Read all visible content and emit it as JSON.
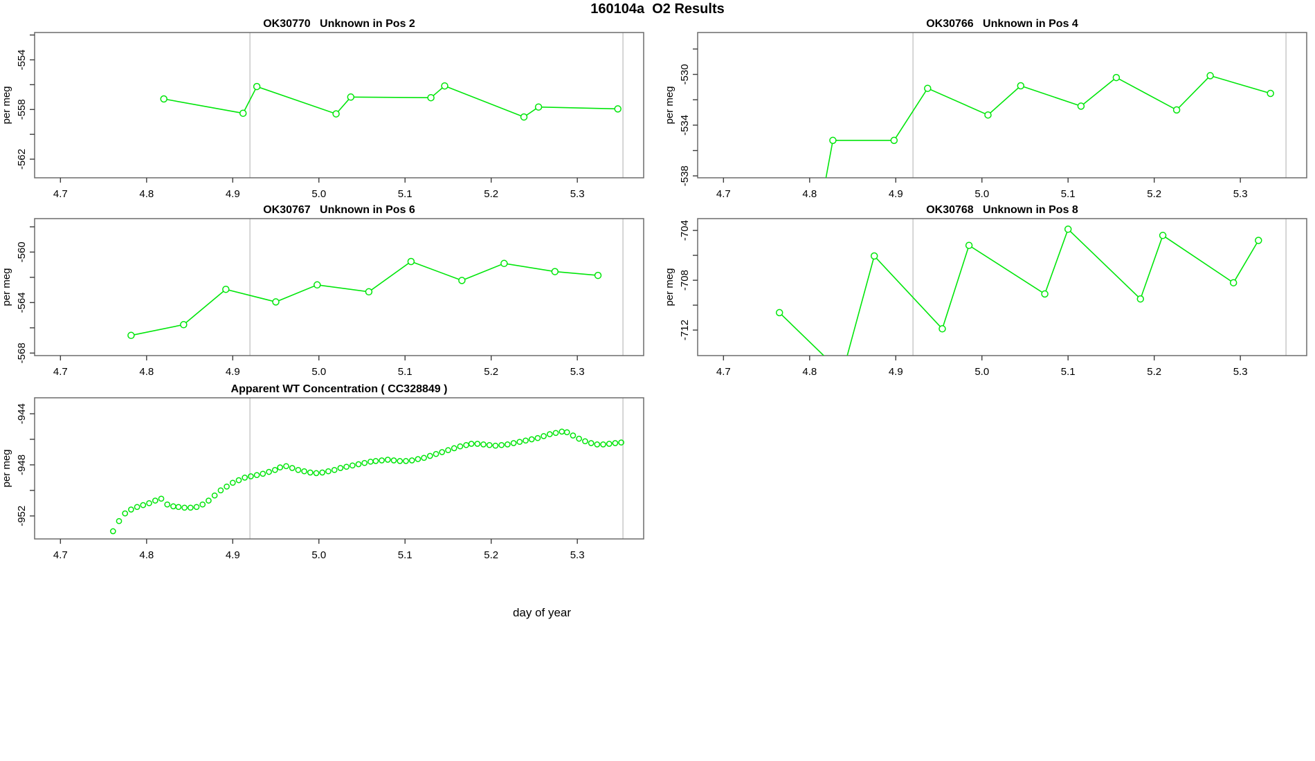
{
  "title": "160104a  O2 Results",
  "xlabel": "day of year",
  "colors": {
    "accent": "#00e60a",
    "frame": "#6b6b6b",
    "tick": "#3c3c3c",
    "guide": "#cccccc"
  },
  "chart_data": [
    {
      "type": "line",
      "title": "OK30770   Unknown in Pos 2",
      "ylabel": "per meg",
      "xlim": [
        4.67,
        5.377
      ],
      "ylim": [
        -563.5,
        -551.8
      ],
      "x_ticks": [
        4.7,
        4.8,
        4.9,
        5.0,
        5.1,
        5.2,
        5.3
      ],
      "x_tick_labels": [
        "4.7",
        "4.8",
        "4.9",
        "5.0",
        "5.1",
        "5.2",
        "5.3"
      ],
      "y_ticks": [
        -552,
        -554,
        -556,
        -558,
        -560,
        -562
      ],
      "y_tick_labels": [
        "",
        "-554",
        "",
        "-558",
        "",
        "-562"
      ],
      "vlines": [
        4.92,
        5.353
      ],
      "marker": "open-circle",
      "points": [
        [
          4.82,
          -557.15
        ],
        [
          4.912,
          -558.3
        ],
        [
          4.928,
          -556.15
        ],
        [
          5.02,
          -558.35
        ],
        [
          5.037,
          -557.0
        ],
        [
          5.13,
          -557.05
        ],
        [
          5.146,
          -556.1
        ],
        [
          5.238,
          -558.6
        ],
        [
          5.255,
          -557.8
        ],
        [
          5.347,
          -557.95
        ]
      ]
    },
    {
      "type": "line",
      "title": "OK30766   Unknown in Pos 4",
      "ylabel": "per meg",
      "xlim": [
        4.67,
        5.377
      ],
      "ylim": [
        -538.15,
        -526.7
      ],
      "x_ticks": [
        4.7,
        4.8,
        4.9,
        5.0,
        5.1,
        5.2,
        5.3
      ],
      "x_tick_labels": [
        "4.7",
        "4.8",
        "4.9",
        "5.0",
        "5.1",
        "5.2",
        "5.3"
      ],
      "y_ticks": [
        -528,
        -530,
        -532,
        -534,
        -536,
        -538
      ],
      "y_tick_labels": [
        "",
        "-530",
        "",
        "-534",
        "",
        "-538"
      ],
      "vlines": [
        4.92,
        5.353
      ],
      "marker": "open-circle",
      "points": [
        [
          4.815,
          -539.6,
          0
        ],
        [
          4.827,
          -535.2
        ],
        [
          4.898,
          -535.2
        ],
        [
          4.937,
          -531.1
        ],
        [
          5.007,
          -533.2
        ],
        [
          5.045,
          -530.9
        ],
        [
          5.115,
          -532.5
        ],
        [
          5.156,
          -530.25
        ],
        [
          5.226,
          -532.8
        ],
        [
          5.265,
          -530.1
        ],
        [
          5.335,
          -531.5
        ]
      ]
    },
    {
      "type": "line",
      "title": "OK30767   Unknown in Pos 6",
      "ylabel": "per meg",
      "xlim": [
        4.67,
        5.377
      ],
      "ylim": [
        -568.2,
        -557.35
      ],
      "x_ticks": [
        4.7,
        4.8,
        4.9,
        5.0,
        5.1,
        5.2,
        5.3
      ],
      "x_tick_labels": [
        "4.7",
        "4.8",
        "4.9",
        "5.0",
        "5.1",
        "5.2",
        "5.3"
      ],
      "y_ticks": [
        -558,
        -560,
        -562,
        -564,
        -566,
        -568
      ],
      "y_tick_labels": [
        "",
        "-560",
        "",
        "-564",
        "",
        "-568"
      ],
      "vlines": [
        4.92,
        5.353
      ],
      "marker": "open-circle",
      "points": [
        [
          4.782,
          -566.6
        ],
        [
          4.843,
          -565.75
        ],
        [
          4.892,
          -562.95
        ],
        [
          4.95,
          -563.95
        ],
        [
          4.998,
          -562.6
        ],
        [
          5.058,
          -563.15
        ],
        [
          5.107,
          -560.75
        ],
        [
          5.166,
          -562.25
        ],
        [
          5.215,
          -560.9
        ],
        [
          5.274,
          -561.55
        ],
        [
          5.324,
          -561.85
        ]
      ]
    },
    {
      "type": "line",
      "title": "OK30768   Unknown in Pos 8",
      "ylabel": "per meg",
      "xlim": [
        4.67,
        5.377
      ],
      "ylim": [
        -714.05,
        -703.05
      ],
      "x_ticks": [
        4.7,
        4.8,
        4.9,
        5.0,
        5.1,
        5.2,
        5.3
      ],
      "x_tick_labels": [
        "4.7",
        "4.8",
        "4.9",
        "5.0",
        "5.1",
        "5.2",
        "5.3"
      ],
      "y_ticks": [
        -704,
        -706,
        -708,
        -710,
        -712
      ],
      "y_tick_labels": [
        "-704",
        "",
        "-708",
        "",
        "-712"
      ],
      "vlines": [
        4.92,
        5.353
      ],
      "marker": "open-circle",
      "points": [
        [
          4.765,
          -710.6
        ],
        [
          4.838,
          -715.5,
          0
        ],
        [
          4.875,
          -706.05
        ],
        [
          4.954,
          -711.9
        ],
        [
          4.985,
          -705.2
        ],
        [
          5.073,
          -709.1
        ],
        [
          5.1,
          -703.9
        ],
        [
          5.184,
          -709.5
        ],
        [
          5.21,
          -704.4
        ],
        [
          5.292,
          -708.2
        ],
        [
          5.321,
          -704.8
        ]
      ]
    },
    {
      "type": "scatter",
      "title": "Apparent WT Concentration ( CC328849 )",
      "ylabel": "per meg",
      "marker_only": true,
      "xlim": [
        4.67,
        5.377
      ],
      "ylim": [
        -953.8,
        -942.75
      ],
      "x_ticks": [
        4.7,
        4.8,
        4.9,
        5.0,
        5.1,
        5.2,
        5.3
      ],
      "x_tick_labels": [
        "4.7",
        "4.8",
        "4.9",
        "5.0",
        "5.1",
        "5.2",
        "5.3"
      ],
      "y_ticks": [
        -944,
        -946,
        -948,
        -950,
        -952
      ],
      "y_tick_labels": [
        "-944",
        "",
        "-948",
        "",
        "-952"
      ],
      "vlines": [
        4.92,
        5.353
      ],
      "marker": "open-circle",
      "points": [
        [
          4.761,
          -953.2
        ],
        [
          4.768,
          -952.4
        ],
        [
          4.775,
          -951.8
        ],
        [
          4.782,
          -951.5
        ],
        [
          4.789,
          -951.3
        ],
        [
          4.796,
          -951.15
        ],
        [
          4.803,
          -951.0
        ],
        [
          4.81,
          -950.8
        ],
        [
          4.817,
          -950.65
        ],
        [
          4.824,
          -951.1
        ],
        [
          4.831,
          -951.25
        ],
        [
          4.837,
          -951.3
        ],
        [
          4.844,
          -951.35
        ],
        [
          4.851,
          -951.35
        ],
        [
          4.858,
          -951.3
        ],
        [
          4.865,
          -951.1
        ],
        [
          4.872,
          -950.8
        ],
        [
          4.879,
          -950.4
        ],
        [
          4.886,
          -950.0
        ],
        [
          4.893,
          -949.7
        ],
        [
          4.9,
          -949.4
        ],
        [
          4.907,
          -949.2
        ],
        [
          4.914,
          -949.0
        ],
        [
          4.921,
          -948.9
        ],
        [
          4.928,
          -948.8
        ],
        [
          4.935,
          -948.7
        ],
        [
          4.942,
          -948.55
        ],
        [
          4.949,
          -948.4
        ],
        [
          4.955,
          -948.2
        ],
        [
          4.962,
          -948.1
        ],
        [
          4.969,
          -948.25
        ],
        [
          4.976,
          -948.4
        ],
        [
          4.983,
          -948.5
        ],
        [
          4.99,
          -948.6
        ],
        [
          4.997,
          -948.65
        ],
        [
          5.004,
          -948.6
        ],
        [
          5.011,
          -948.5
        ],
        [
          5.018,
          -948.4
        ],
        [
          5.025,
          -948.25
        ],
        [
          5.032,
          -948.15
        ],
        [
          5.039,
          -948.05
        ],
        [
          5.046,
          -947.95
        ],
        [
          5.053,
          -947.85
        ],
        [
          5.06,
          -947.75
        ],
        [
          5.066,
          -947.7
        ],
        [
          5.073,
          -947.65
        ],
        [
          5.08,
          -947.6
        ],
        [
          5.087,
          -947.65
        ],
        [
          5.094,
          -947.7
        ],
        [
          5.101,
          -947.7
        ],
        [
          5.108,
          -947.65
        ],
        [
          5.115,
          -947.55
        ],
        [
          5.122,
          -947.45
        ],
        [
          5.129,
          -947.3
        ],
        [
          5.136,
          -947.15
        ],
        [
          5.143,
          -947.0
        ],
        [
          5.15,
          -946.85
        ],
        [
          5.157,
          -946.7
        ],
        [
          5.164,
          -946.55
        ],
        [
          5.171,
          -946.45
        ],
        [
          5.177,
          -946.35
        ],
        [
          5.184,
          -946.35
        ],
        [
          5.191,
          -946.4
        ],
        [
          5.198,
          -946.45
        ],
        [
          5.205,
          -946.5
        ],
        [
          5.212,
          -946.45
        ],
        [
          5.219,
          -946.4
        ],
        [
          5.226,
          -946.3
        ],
        [
          5.233,
          -946.2
        ],
        [
          5.24,
          -946.1
        ],
        [
          5.247,
          -946.0
        ],
        [
          5.254,
          -945.9
        ],
        [
          5.261,
          -945.75
        ],
        [
          5.268,
          -945.6
        ],
        [
          5.275,
          -945.5
        ],
        [
          5.282,
          -945.4
        ],
        [
          5.288,
          -945.45
        ],
        [
          5.295,
          -945.7
        ],
        [
          5.302,
          -945.95
        ],
        [
          5.309,
          -946.15
        ],
        [
          5.316,
          -946.3
        ],
        [
          5.323,
          -946.4
        ],
        [
          5.33,
          -946.4
        ],
        [
          5.337,
          -946.35
        ],
        [
          5.344,
          -946.3
        ],
        [
          5.351,
          -946.25
        ]
      ]
    }
  ]
}
